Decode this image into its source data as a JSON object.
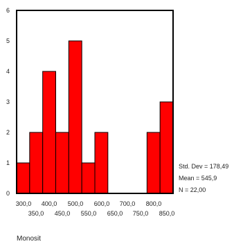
{
  "chart_data": {
    "type": "bar",
    "bin_edges": [
      300,
      350,
      400,
      450,
      500,
      550,
      600,
      650,
      700,
      750,
      800,
      850,
      900
    ],
    "values": [
      1,
      2,
      4,
      2,
      5,
      1,
      2,
      0,
      0,
      0,
      2,
      3
    ],
    "xlim": [
      300,
      900
    ],
    "ylim": [
      0,
      6
    ],
    "y_ticks": [
      "0",
      "1",
      "2",
      "3",
      "4",
      "5",
      "6"
    ],
    "x_ticks_row1": [
      "300,0",
      "400,0",
      "500,0",
      "600,0",
      "700,0",
      "800,0"
    ],
    "x_ticks_row2": [
      "350,0",
      "450,0",
      "550,0",
      "650,0",
      "750,0",
      "850,0"
    ],
    "xlabel": "Monosit",
    "bar_color": "#ff0000",
    "stats": [
      "Std. Dev = 178,49",
      "Mean = 545,9",
      "N = 22,00"
    ],
    "grid": false
  }
}
